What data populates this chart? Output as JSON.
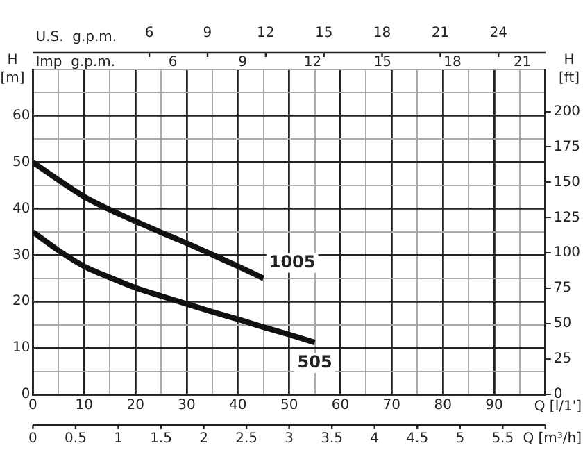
{
  "chart_data": {
    "type": "line",
    "xlabel": "Q [l/1']",
    "ylabel": "H [m]",
    "y2label": "H [ft]",
    "x2label": "U.S.  g.p.m.",
    "xlim": [
      0,
      100
    ],
    "xticks": [
      0,
      {
        "value": 5,
        "label": null
      },
      10,
      {
        "value": 15,
        "label": null
      },
      20,
      {
        "value": 25,
        "label": null
      },
      30,
      {
        "value": 35,
        "label": null
      },
      40,
      {
        "value": 45,
        "label": null
      },
      50,
      {
        "value": 55,
        "label": null
      },
      60,
      {
        "value": 65,
        "label": null
      },
      70,
      {
        "value": 75,
        "label": null
      },
      80,
      {
        "value": 85,
        "label": null
      },
      90,
      {
        "value": 95,
        "label": null
      },
      {
        "value": 100,
        "label": null
      }
    ],
    "ylim": [
      0,
      70
    ],
    "yticks": [
      0,
      {
        "value": 5,
        "label": null
      },
      10,
      {
        "value": 15,
        "label": null
      },
      20,
      {
        "value": 25,
        "label": null
      },
      30,
      {
        "value": 35,
        "label": null
      },
      40,
      {
        "value": 45,
        "label": null
      },
      50,
      {
        "value": 55,
        "label": null
      },
      60,
      {
        "value": 65,
        "label": null
      },
      {
        "value": 70,
        "label": null
      }
    ],
    "y2lim": [
      0,
      229.7
    ],
    "y2ticks": [
      0,
      25,
      50,
      75,
      100,
      125,
      150,
      175,
      200
    ],
    "x2lim": [
      0,
      26.42
    ],
    "x2ticks": [
      6,
      9,
      12,
      15,
      18,
      21,
      24
    ],
    "annotations": [
      "Imp  g.p.m.",
      "6",
      "9",
      "12",
      "15",
      "18",
      "21",
      "Q [m³/h]",
      "0",
      "0.5",
      "1",
      "1.5",
      "2",
      "2.5",
      "3",
      "3.5",
      "4",
      "4.5",
      "5",
      "5.5"
    ],
    "grid": true,
    "series": [
      {
        "name": "1005",
        "color": "#111111",
        "x": [
          0,
          5,
          10,
          15,
          20,
          25,
          30,
          35,
          40,
          45
        ],
        "values": [
          50,
          46.2,
          42.6,
          39.8,
          37.3,
          34.9,
          32.6,
          30.1,
          27.6,
          25
        ]
      },
      {
        "name": "505",
        "color": "#111111",
        "x": [
          0,
          5,
          10,
          15,
          20,
          25,
          30,
          35,
          40,
          45,
          50,
          55
        ],
        "values": [
          35,
          31,
          27.6,
          25.2,
          23,
          21.2,
          19.5,
          17.8,
          16.2,
          14.5,
          12.9,
          11.2
        ]
      }
    ]
  }
}
